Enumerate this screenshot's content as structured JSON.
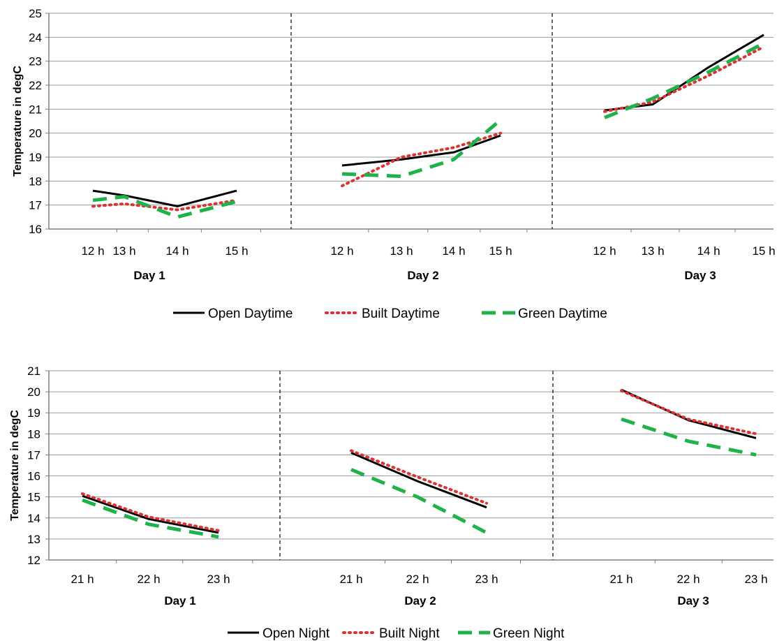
{
  "chart_data": [
    {
      "type": "line",
      "title": "",
      "ylabel": "Temperature in degC",
      "ylim": [
        16,
        25
      ],
      "yticks": [
        16,
        17,
        18,
        19,
        20,
        21,
        22,
        23,
        24,
        25
      ],
      "grid": true,
      "legend_position": "bottom",
      "groups": [
        {
          "label": "Day 1",
          "categories": [
            "12 h",
            "13 h",
            "14 h",
            "15 h"
          ]
        },
        {
          "label": "Day 2",
          "categories": [
            "12 h",
            "13 h",
            "14 h",
            "15 h"
          ]
        },
        {
          "label": "Day 3",
          "categories": [
            "12 h",
            "13 h",
            "14 h",
            "15 h"
          ]
        }
      ],
      "series": [
        {
          "name": "Open Daytime",
          "color": "#000000",
          "style": "solid",
          "values": [
            [
              17.6,
              17.4,
              16.95,
              17.6
            ],
            [
              18.65,
              18.9,
              19.2,
              19.9
            ],
            [
              20.95,
              21.2,
              22.75,
              24.1
            ]
          ]
        },
        {
          "name": "Built Daytime",
          "color": "#e03030",
          "style": "dotted",
          "values": [
            [
              16.95,
              17.05,
              16.8,
              17.2
            ],
            [
              17.8,
              19.0,
              19.4,
              20.0
            ],
            [
              20.9,
              21.3,
              22.4,
              23.6
            ]
          ]
        },
        {
          "name": "Green Daytime",
          "color": "#1fb24a",
          "style": "dashed",
          "values": [
            [
              17.2,
              17.35,
              16.5,
              17.15
            ],
            [
              18.3,
              18.2,
              18.9,
              20.55
            ],
            [
              20.65,
              21.45,
              22.55,
              23.75
            ]
          ]
        }
      ]
    },
    {
      "type": "line",
      "title": "",
      "ylabel": "Temperature in degC",
      "ylim": [
        12,
        21
      ],
      "yticks": [
        12,
        13,
        14,
        15,
        16,
        17,
        18,
        19,
        20,
        21
      ],
      "grid": true,
      "legend_position": "bottom",
      "groups": [
        {
          "label": "Day 1",
          "categories": [
            "21 h",
            "22 h",
            "23 h"
          ]
        },
        {
          "label": "Day 2",
          "categories": [
            "21 h",
            "22 h",
            "23 h"
          ]
        },
        {
          "label": "Day 3",
          "categories": [
            "21 h",
            "22 h",
            "23 h"
          ]
        }
      ],
      "series": [
        {
          "name": "Open Night",
          "color": "#000000",
          "style": "solid",
          "values": [
            [
              15.05,
              13.95,
              13.3
            ],
            [
              17.1,
              15.75,
              14.5
            ],
            [
              20.1,
              18.65,
              17.8
            ]
          ]
        },
        {
          "name": "Built Night",
          "color": "#e03030",
          "style": "dotted",
          "values": [
            [
              15.15,
              14.05,
              13.4
            ],
            [
              17.2,
              15.95,
              14.7
            ],
            [
              20.05,
              18.7,
              18.0
            ]
          ]
        },
        {
          "name": "Green Night",
          "color": "#1fb24a",
          "style": "dashed",
          "values": [
            [
              14.85,
              13.7,
              13.1
            ],
            [
              16.3,
              15.0,
              13.3
            ],
            [
              18.7,
              17.65,
              17.0
            ]
          ]
        }
      ]
    }
  ]
}
